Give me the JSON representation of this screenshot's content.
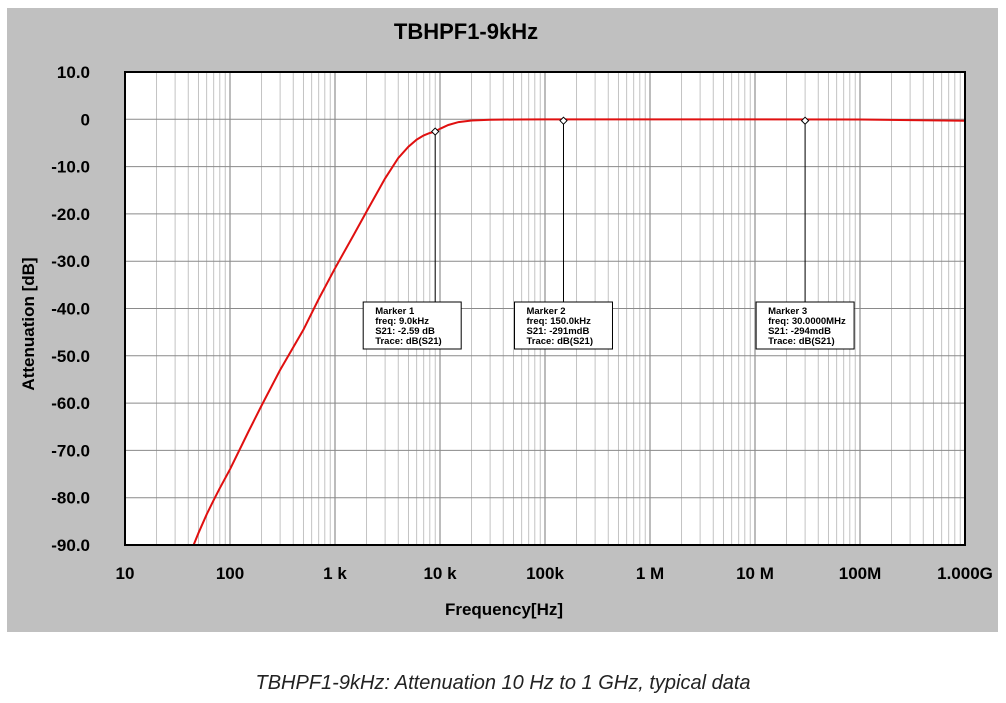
{
  "chart_data": {
    "type": "line",
    "title": "TBHPF1-9kHz",
    "xlabel": "Frequency[Hz]",
    "ylabel": "Attenuation [dB]",
    "x_scale": "log",
    "xlim": [
      10,
      1000000000
    ],
    "ylim": [
      -90,
      10
    ],
    "grid": true,
    "x_ticks": [
      {
        "value": 10,
        "label": "10"
      },
      {
        "value": 100,
        "label": "100"
      },
      {
        "value": 1000,
        "label": "1  k"
      },
      {
        "value": 10000,
        "label": "10 k"
      },
      {
        "value": 100000,
        "label": "100k"
      },
      {
        "value": 1000000,
        "label": "1  M"
      },
      {
        "value": 10000000,
        "label": "10 M"
      },
      {
        "value": 100000000,
        "label": "100M"
      },
      {
        "value": 1000000000,
        "label": "1.000G"
      }
    ],
    "y_ticks": [
      {
        "value": 10,
        "label": "10.0"
      },
      {
        "value": 0,
        "label": "0"
      },
      {
        "value": -10,
        "label": "-10.0"
      },
      {
        "value": -20,
        "label": "-20.0"
      },
      {
        "value": -30,
        "label": "-30.0"
      },
      {
        "value": -40,
        "label": "-40.0"
      },
      {
        "value": -50,
        "label": "-50.0"
      },
      {
        "value": -60,
        "label": "-60.0"
      },
      {
        "value": -70,
        "label": "-70.0"
      },
      {
        "value": -80,
        "label": "-80.0"
      },
      {
        "value": -90,
        "label": "-90.0"
      }
    ],
    "series": [
      {
        "color": "#e01010",
        "x": [
          45,
          50,
          60,
          70,
          80,
          100,
          150,
          200,
          300,
          500,
          700,
          1000,
          1500,
          2000,
          3000,
          4000,
          5000,
          6000,
          7000,
          8000,
          9000,
          10000,
          12000,
          15000,
          20000,
          30000,
          50000,
          100000,
          1000000,
          10000000,
          100000000,
          1000000000
        ],
        "y": [
          -90,
          -87.5,
          -83.5,
          -80.5,
          -78,
          -74,
          -66,
          -60.5,
          -53,
          -44.5,
          -38,
          -31.5,
          -24.5,
          -19.5,
          -12.5,
          -8.2,
          -5.8,
          -4.3,
          -3.4,
          -2.9,
          -2.59,
          -2.0,
          -1.2,
          -0.6,
          -0.25,
          -0.1,
          -0.05,
          -0.02,
          -0.02,
          -0.02,
          -0.05,
          -0.3
        ]
      }
    ],
    "markers": [
      {
        "x": 9000,
        "y": -2.59,
        "lines": [
          "Marker 1",
          "freq: 9.0kHz",
          "S21: -2.59 dB",
          "Trace: dB(S21)"
        ]
      },
      {
        "x": 150000,
        "y": -0.291,
        "lines": [
          "Marker 2",
          "freq: 150.0kHz",
          "S21: -291mdB",
          "Trace: dB(S21)"
        ]
      },
      {
        "x": 30000000,
        "y": -0.294,
        "lines": [
          "Marker 3",
          "freq: 30.0000MHz",
          "S21: -294mdB",
          "Trace: dB(S21)"
        ]
      }
    ]
  },
  "caption": "TBHPF1-9kHz: Attenuation 10 Hz to 1 GHz, typical data"
}
